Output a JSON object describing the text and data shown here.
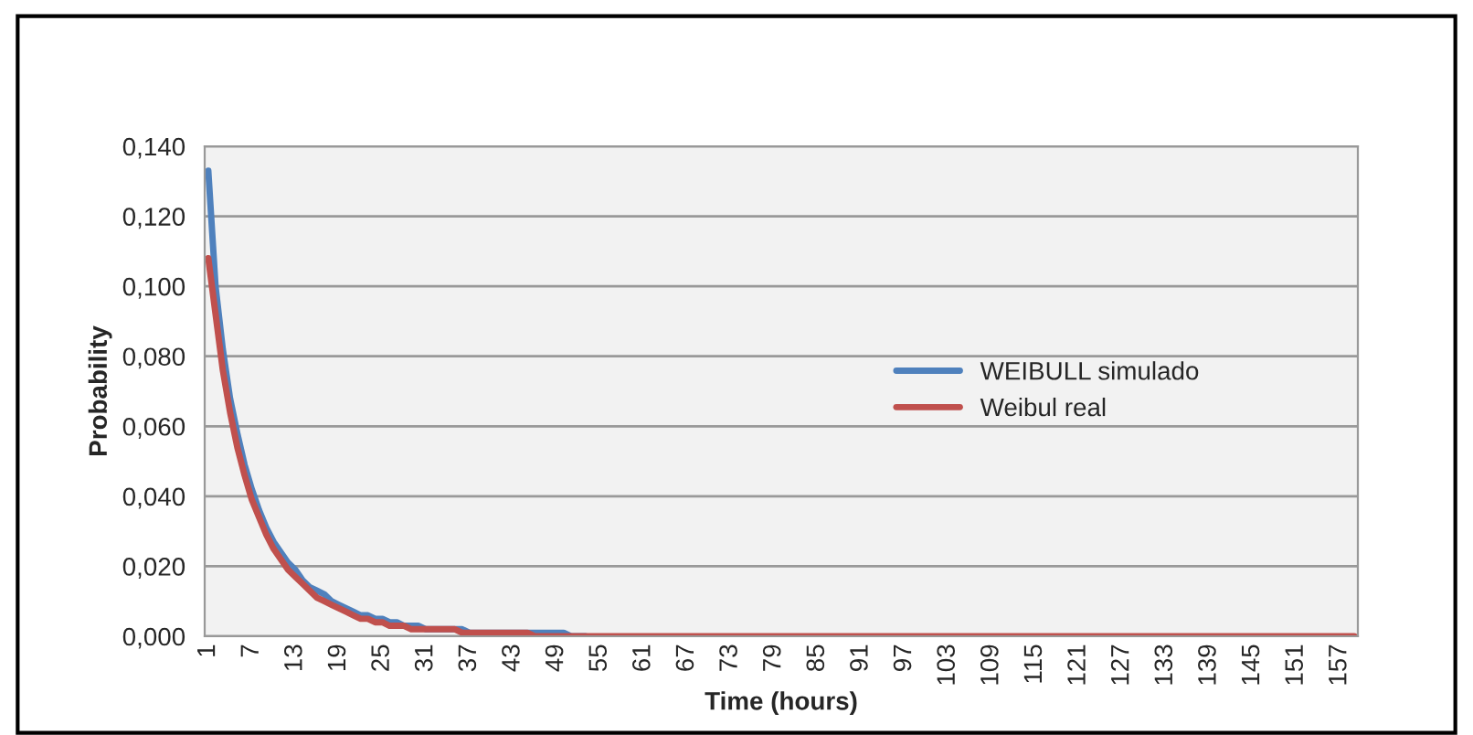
{
  "chart_data": {
    "type": "line",
    "xlabel": "Time (hours)",
    "ylabel": "Probability",
    "categories": [
      "1",
      null,
      null,
      null,
      null,
      null,
      "7",
      null,
      null,
      null,
      null,
      null,
      "13",
      null,
      null,
      null,
      null,
      null,
      "19",
      null,
      null,
      null,
      null,
      null,
      "25",
      null,
      null,
      null,
      null,
      null,
      "31",
      null,
      null,
      null,
      null,
      null,
      "37",
      null,
      null,
      null,
      null,
      null,
      "43",
      null,
      null,
      null,
      null,
      null,
      "49",
      null,
      null,
      null,
      null,
      null,
      "55",
      null,
      null,
      null,
      null,
      null,
      "61",
      null,
      null,
      null,
      null,
      null,
      "67",
      null,
      null,
      null,
      null,
      null,
      "73",
      null,
      null,
      null,
      null,
      null,
      "79",
      null,
      null,
      null,
      null,
      null,
      "85",
      null,
      null,
      null,
      null,
      null,
      "91",
      null,
      null,
      null,
      null,
      null,
      "97",
      null,
      null,
      null,
      null,
      null,
      "103",
      null,
      null,
      null,
      null,
      null,
      "109",
      null,
      null,
      null,
      null,
      null,
      "115",
      null,
      null,
      null,
      null,
      null,
      "121",
      null,
      null,
      null,
      null,
      null,
      "127",
      null,
      null,
      null,
      null,
      null,
      "133",
      null,
      null,
      null,
      null,
      null,
      "139",
      null,
      null,
      null,
      null,
      null,
      "145",
      null,
      null,
      null,
      null,
      null,
      "151",
      null,
      null,
      null,
      null,
      null,
      "157",
      null,
      null
    ],
    "series": [
      {
        "name": "WEIBULL simulado",
        "color": "#4f81bd",
        "values": [
          0.133,
          0.1,
          0.082,
          0.068,
          0.058,
          0.049,
          0.042,
          0.036,
          0.031,
          0.027,
          0.024,
          0.021,
          0.019,
          0.016,
          0.014,
          0.013,
          0.012,
          0.01,
          0.009,
          0.008,
          0.007,
          0.006,
          0.006,
          0.005,
          0.005,
          0.004,
          0.004,
          0.003,
          0.003,
          0.003,
          0.002,
          0.002,
          0.002,
          0.002,
          0.002,
          0.002,
          0.001,
          0.001,
          0.001,
          0.001,
          0.001,
          0.001,
          0.001,
          0.001,
          0.001,
          0.001,
          0.001,
          0.001,
          0.001,
          0.001,
          0,
          0,
          0,
          null,
          null,
          null,
          null,
          null,
          null,
          null,
          null,
          null,
          null,
          null,
          null,
          null,
          null,
          null,
          null,
          null,
          null,
          null,
          null,
          null,
          null,
          null,
          null,
          null,
          null,
          null,
          null,
          null,
          null,
          null,
          null,
          null,
          null,
          null,
          null,
          null,
          null,
          null,
          null,
          null,
          null,
          null,
          null,
          null,
          null,
          null,
          null,
          null,
          null,
          null,
          null,
          null,
          null,
          null,
          null,
          null,
          null,
          null,
          null,
          null,
          null,
          null,
          null,
          null,
          null,
          null,
          null,
          null,
          null,
          null,
          null,
          null,
          null,
          null,
          null,
          null,
          null,
          null,
          null,
          null,
          null,
          null,
          null,
          null,
          null,
          null,
          null,
          null,
          null,
          null,
          null,
          null,
          null,
          null,
          null,
          null,
          null,
          null,
          null,
          null,
          null,
          null,
          null,
          null,
          null
        ]
      },
      {
        "name": "Weibul real",
        "color": "#c0504d",
        "values": [
          0.108,
          0.092,
          0.076,
          0.064,
          0.054,
          0.046,
          0.039,
          0.034,
          0.029,
          0.025,
          0.022,
          0.019,
          0.017,
          0.015,
          0.013,
          0.011,
          0.01,
          0.009,
          0.008,
          0.007,
          0.006,
          0.005,
          0.005,
          0.004,
          0.004,
          0.003,
          0.003,
          0.003,
          0.002,
          0.002,
          0.002,
          0.002,
          0.002,
          0.002,
          0.002,
          0.001,
          0.001,
          0.001,
          0.001,
          0.001,
          0.001,
          0.001,
          0.001,
          0.001,
          0.001,
          0,
          0,
          0,
          0,
          0,
          0,
          0,
          0,
          0,
          0,
          0,
          0,
          0,
          0,
          0,
          0,
          0,
          0,
          0,
          0,
          0,
          0,
          0,
          0,
          0,
          0,
          0,
          0,
          0,
          0,
          0,
          0,
          0,
          0,
          0,
          0,
          0,
          0,
          0,
          0,
          0,
          0,
          0,
          0,
          0,
          0,
          0,
          0,
          0,
          0,
          0,
          0,
          0,
          0,
          0,
          0,
          0,
          0,
          0,
          0,
          0,
          0,
          0,
          0,
          0,
          0,
          0,
          0,
          0,
          0,
          0,
          0,
          0,
          0,
          0,
          0,
          0,
          0,
          0,
          0,
          0,
          0,
          0,
          0,
          0,
          0,
          0,
          0,
          0,
          0,
          0,
          0,
          0,
          0,
          0,
          0,
          0,
          0,
          0,
          0,
          0,
          0,
          0,
          0,
          0,
          0,
          0,
          0,
          0,
          0,
          0,
          0,
          0,
          0
        ]
      }
    ],
    "ylim": [
      0,
      0.14
    ],
    "yticks": [
      {
        "value": 0,
        "label": "0,000"
      },
      {
        "value": 0.02,
        "label": "0,020"
      },
      {
        "value": 0.04,
        "label": "0,040"
      },
      {
        "value": 0.06,
        "label": "0,060"
      },
      {
        "value": 0.08,
        "label": "0,080"
      },
      {
        "value": 0.1,
        "label": "0,100"
      },
      {
        "value": 0.12,
        "label": "0,120"
      },
      {
        "value": 0.14,
        "label": "0,140"
      }
    ],
    "grid": "y",
    "legend": "right",
    "marker": "none",
    "line_style": "solid"
  }
}
